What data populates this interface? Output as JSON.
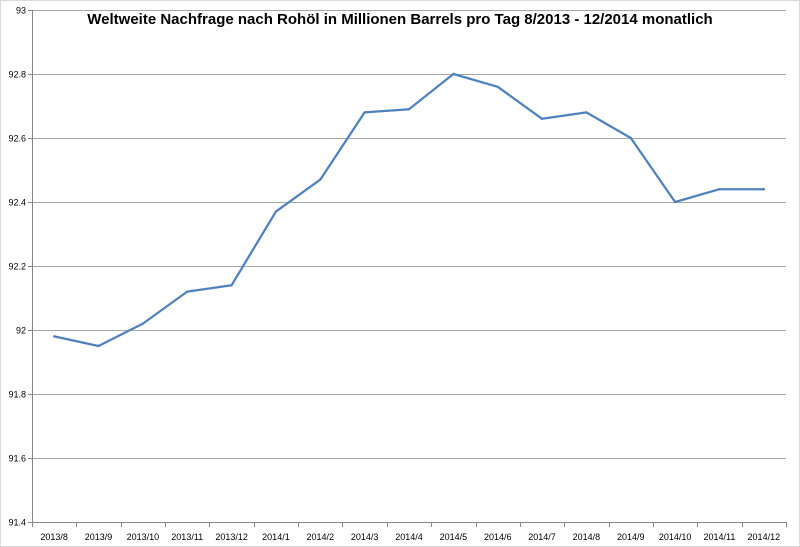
{
  "chart_data": {
    "type": "line",
    "title": "Weltweite Nachfrage nach Rohöl in Millionen Barrels pro Tag 8/2013  - 12/2014 monatlich",
    "xlabel": "",
    "ylabel": "",
    "categories": [
      "2013/8",
      "2013/9",
      "2013/10",
      "2013/11",
      "2013/12",
      "2014/1",
      "2014/2",
      "2014/3",
      "2014/4",
      "2014/5",
      "2014/6",
      "2014/7",
      "2014/8",
      "2014/9",
      "2014/10",
      "2014/11",
      "2014/12"
    ],
    "series": [
      {
        "values": [
          91.98,
          91.95,
          92.02,
          92.12,
          92.14,
          92.37,
          92.47,
          92.68,
          92.69,
          92.8,
          92.76,
          92.66,
          92.68,
          92.6,
          92.4,
          92.44,
          92.44
        ],
        "color": "#4f81bd"
      }
    ],
    "ylim": [
      91.4,
      93
    ],
    "yticks": [
      "91.4",
      "91.6",
      "91.8",
      "92",
      "92.2",
      "92.4",
      "92.6",
      "92.8",
      "93"
    ],
    "grid": true,
    "gridline_color": "#a6a6a6",
    "axis_color": "#868686",
    "legend": "none"
  }
}
